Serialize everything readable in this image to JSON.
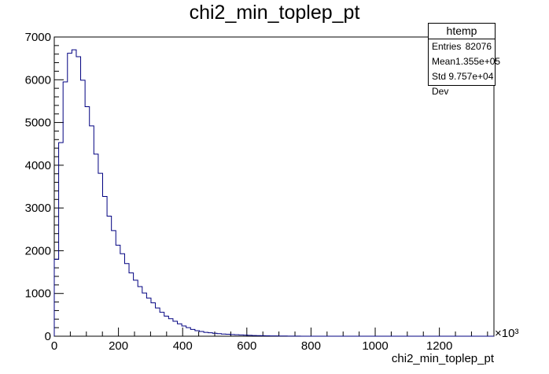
{
  "chart_data": {
    "type": "bar",
    "title": "chi2_min_toplep_pt",
    "xlabel": "chi2_min_toplep_pt",
    "ylabel": "",
    "x_exponent": "×10³",
    "xlim": [
      0,
      1370
    ],
    "ylim": [
      0,
      7000
    ],
    "x_ticks": [
      0,
      200,
      400,
      600,
      800,
      1000,
      1200
    ],
    "y_ticks": [
      0,
      1000,
      2000,
      3000,
      4000,
      5000,
      6000,
      7000
    ],
    "bin_width": 13.7,
    "grid": false,
    "line_color": "#000080",
    "values": [
      1800,
      4530,
      5950,
      6620,
      6700,
      6540,
      5990,
      5370,
      4920,
      4260,
      3810,
      3270,
      2810,
      2470,
      2130,
      1930,
      1700,
      1480,
      1310,
      1160,
      1010,
      890,
      780,
      660,
      560,
      470,
      410,
      350,
      290,
      240,
      200,
      160,
      130,
      110,
      90,
      80,
      70,
      60,
      50,
      45,
      40,
      35,
      30,
      25,
      20,
      17,
      14,
      12,
      10,
      8,
      6,
      5,
      4,
      3,
      2,
      2,
      1,
      1,
      1,
      1,
      0,
      0,
      0,
      0,
      0,
      0,
      0,
      0,
      0,
      0,
      0,
      0,
      0,
      0,
      0,
      0,
      0,
      0,
      0,
      0,
      0,
      0,
      0,
      0,
      0,
      0,
      0,
      0,
      0,
      0,
      0,
      0,
      0,
      0,
      0,
      0,
      0,
      0,
      0,
      0
    ]
  },
  "stats": {
    "name": "htemp",
    "rows": [
      {
        "label": "Entries",
        "value": "82076"
      },
      {
        "label": "Mean",
        "value": "1.355e+05"
      },
      {
        "label": "Std Dev",
        "value": "9.757e+04"
      }
    ]
  }
}
